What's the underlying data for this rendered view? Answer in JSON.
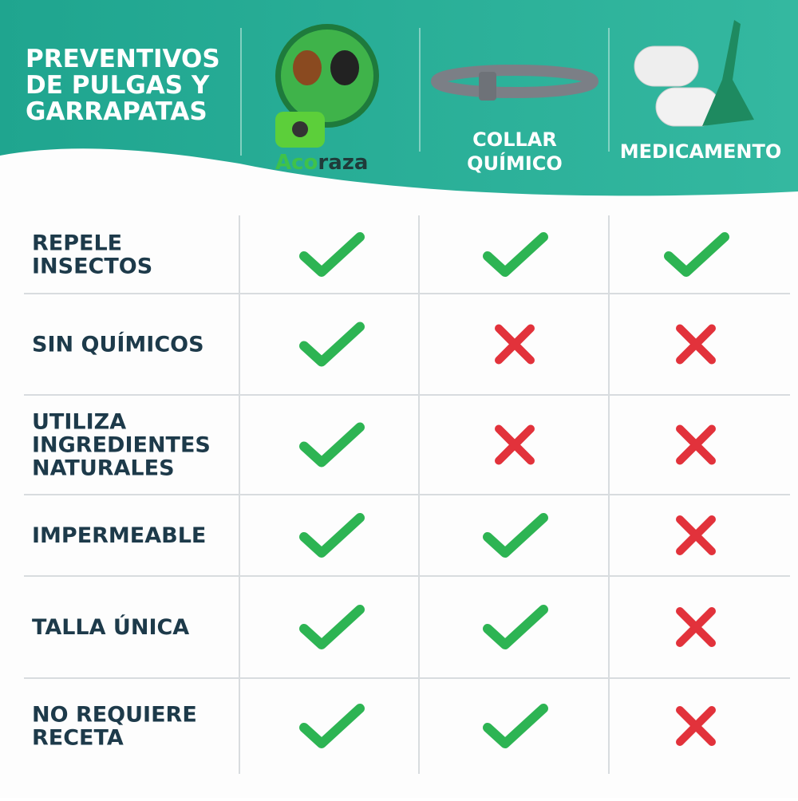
{
  "header": {
    "title": [
      "PREVENTIVOS",
      "DE PULGAS Y",
      "GARRAPATAS"
    ]
  },
  "columns": [
    {
      "brand": [
        "Aco",
        "raza"
      ]
    },
    {
      "label": [
        "COLLAR",
        "QUÍMICO"
      ]
    },
    {
      "label": [
        "MEDICAMENTO"
      ]
    }
  ],
  "table": {
    "rows": [
      {
        "label": [
          "REPELE",
          "INSECTOS"
        ],
        "values": [
          true,
          true,
          true
        ]
      },
      {
        "label": [
          "SIN QUÍMICOS"
        ],
        "values": [
          true,
          false,
          false
        ]
      },
      {
        "label": [
          "UTILIZA",
          "INGREDIENTES",
          "NATURALES"
        ],
        "values": [
          true,
          false,
          false
        ]
      },
      {
        "label": [
          "IMPERMEABLE"
        ],
        "values": [
          true,
          true,
          false
        ]
      },
      {
        "label": [
          "TALLA ÚNICA"
        ],
        "values": [
          true,
          true,
          false
        ]
      },
      {
        "label": [
          "NO REQUIERE",
          "RECETA"
        ],
        "values": [
          true,
          true,
          false
        ]
      }
    ]
  }
}
